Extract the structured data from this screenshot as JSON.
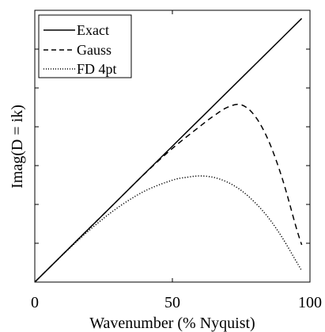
{
  "chart_data": {
    "type": "line",
    "title": "",
    "xlabel": "Wavenumber (% Nyquist)",
    "ylabel": "Imag(D = ik)",
    "xlim": [
      0,
      100
    ],
    "ylim": [
      0,
      3.1416
    ],
    "grid": false,
    "legend_position": "top-left",
    "x_ticks": [
      "0",
      "50",
      "100"
    ],
    "series": [
      {
        "name": "Exact",
        "style": "solid",
        "x": [
          0,
          10,
          20,
          30,
          40,
          50,
          60,
          70,
          80,
          90,
          97
        ],
        "y": [
          0,
          0.314,
          0.628,
          0.942,
          1.257,
          1.571,
          1.885,
          2.199,
          2.513,
          2.827,
          3.047
        ]
      },
      {
        "name": "Gauss",
        "style": "dashed",
        "x": [
          0,
          10,
          20,
          30,
          40,
          50,
          60,
          65,
          70,
          75,
          80,
          85,
          90,
          95,
          97
        ],
        "y": [
          0,
          0.314,
          0.628,
          0.942,
          1.255,
          1.545,
          1.8,
          1.92,
          2.02,
          2.05,
          1.92,
          1.63,
          1.19,
          0.63,
          0.43
        ]
      },
      {
        "name": "FD 4pt",
        "style": "dotted",
        "x": [
          0,
          10,
          20,
          30,
          40,
          50,
          55,
          60,
          65,
          70,
          75,
          80,
          85,
          90,
          95,
          97
        ],
        "y": [
          0,
          0.312,
          0.605,
          0.857,
          1.053,
          1.178,
          1.21,
          1.227,
          1.21,
          1.155,
          1.06,
          0.92,
          0.74,
          0.51,
          0.24,
          0.13
        ]
      }
    ]
  }
}
